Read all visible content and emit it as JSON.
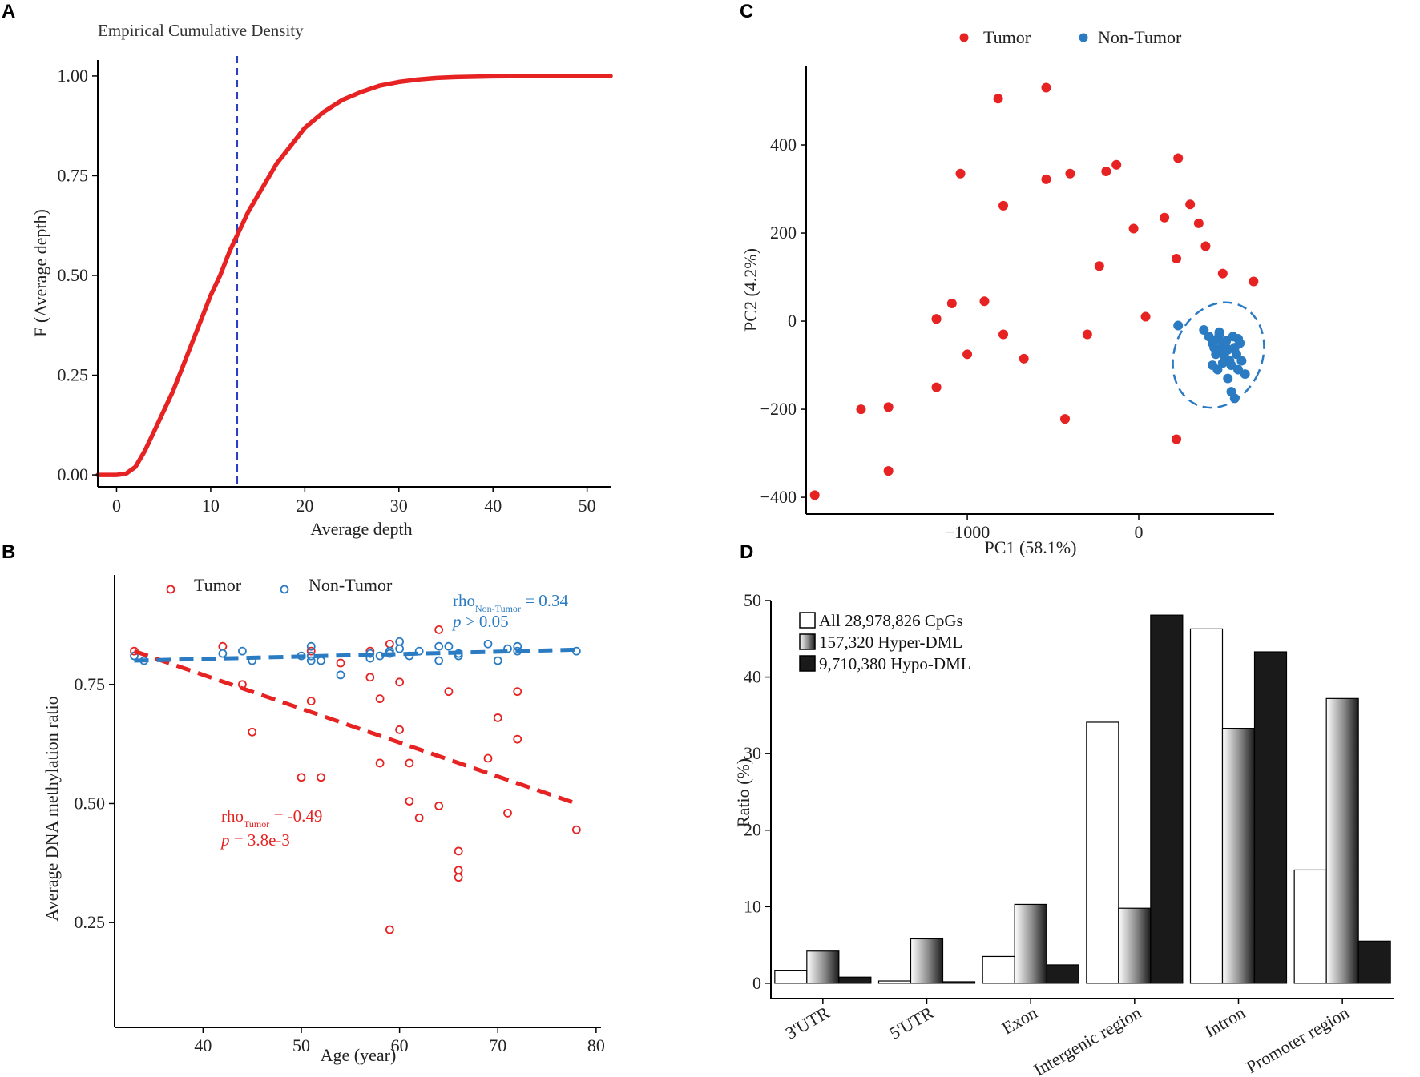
{
  "chart_data": [
    {
      "panel": "A",
      "type": "line",
      "title": "Empirical Cumulative Density",
      "xlabel": "Average depth",
      "ylabel": "F (Average depth)",
      "xlim": [
        -2,
        52.5
      ],
      "ylim": [
        -0.03,
        1.04
      ],
      "xticks": [
        "0",
        "10",
        "20",
        "30",
        "40",
        "50"
      ],
      "yticks": [
        "0.00",
        "0.25",
        "0.50",
        "0.75",
        "1.00"
      ],
      "cutoff_line_x": 12.8,
      "colors": {
        "curve": "#e62222",
        "cutoff": "#2b3fc4"
      },
      "x": [
        -2,
        0,
        1,
        2,
        3,
        4,
        5,
        6,
        7,
        8,
        9,
        10,
        11,
        12,
        13,
        14,
        15,
        16,
        17,
        18,
        19,
        20,
        22,
        24,
        26,
        28,
        30,
        32,
        34,
        36,
        38,
        40,
        42,
        45,
        48,
        52.5
      ],
      "y": [
        0.0,
        0.0,
        0.003,
        0.02,
        0.06,
        0.11,
        0.16,
        0.21,
        0.27,
        0.33,
        0.39,
        0.45,
        0.5,
        0.56,
        0.61,
        0.66,
        0.7,
        0.74,
        0.78,
        0.81,
        0.84,
        0.87,
        0.91,
        0.94,
        0.96,
        0.976,
        0.985,
        0.991,
        0.995,
        0.997,
        0.998,
        0.999,
        0.9995,
        1.0,
        1.0,
        1.0
      ]
    },
    {
      "panel": "B",
      "type": "scatter",
      "xlabel": "Age (year)",
      "ylabel": "Average DNA methylation ratio",
      "xlim": [
        31,
        80.5
      ],
      "ylim": [
        0.03,
        0.98
      ],
      "xticks": [
        "40",
        "50",
        "60",
        "70",
        "80"
      ],
      "yticks": [
        "0.25",
        "0.50",
        "0.75"
      ],
      "series": [
        {
          "name": "Tumor",
          "color": "#e62222",
          "x": [
            33,
            42,
            44,
            45,
            50,
            51,
            51,
            52,
            54,
            57,
            57,
            58,
            58,
            59,
            59,
            60,
            60,
            61,
            61,
            62,
            64,
            64,
            65,
            66,
            66,
            66,
            69,
            70,
            71,
            72,
            72,
            78
          ],
          "y": [
            0.82,
            0.83,
            0.75,
            0.65,
            0.555,
            0.715,
            0.82,
            0.555,
            0.795,
            0.765,
            0.82,
            0.72,
            0.585,
            0.235,
            0.835,
            0.655,
            0.755,
            0.585,
            0.505,
            0.47,
            0.865,
            0.495,
            0.735,
            0.4,
            0.36,
            0.345,
            0.595,
            0.68,
            0.48,
            0.735,
            0.635,
            0.445
          ],
          "trend": {
            "x": [
              33,
              78
            ],
            "y": [
              0.82,
              0.5
            ]
          }
        },
        {
          "name": "Non-Tumor",
          "color": "#2a7bc2",
          "x": [
            33,
            34,
            42,
            44,
            45,
            50,
            51,
            51,
            51,
            52,
            54,
            57,
            57,
            58,
            59,
            59,
            60,
            60,
            61,
            62,
            64,
            64,
            65,
            66,
            66,
            69,
            70,
            71,
            72,
            72,
            78
          ],
          "y": [
            0.81,
            0.8,
            0.815,
            0.82,
            0.8,
            0.81,
            0.83,
            0.8,
            0.81,
            0.8,
            0.77,
            0.815,
            0.805,
            0.81,
            0.815,
            0.82,
            0.84,
            0.825,
            0.81,
            0.82,
            0.8,
            0.83,
            0.83,
            0.815,
            0.81,
            0.835,
            0.8,
            0.825,
            0.83,
            0.82,
            0.82
          ],
          "trend": {
            "x": [
              33,
              78
            ],
            "y": [
              0.8,
              0.823
            ]
          }
        }
      ],
      "legend": [
        "Tumor",
        "Non-Tumor"
      ],
      "annotations": {
        "tumor_rho_base": "rho",
        "tumor_rho_sub": "Tumor",
        "tumor_rho_value": " = -0.49",
        "tumor_p_label": "p",
        "tumor_p_value": " =  3.8e-3",
        "nontumor_rho_base": "rho",
        "nontumor_rho_sub": "Non-Tumor",
        "nontumor_rho_value": " = 0.34",
        "nontumor_p_label": "p",
        "nontumor_p_value": " > 0.05"
      }
    },
    {
      "panel": "C",
      "type": "scatter",
      "xlabel": "PC1 (58.1%)",
      "ylabel": "PC2 (4.2%)",
      "xlim": [
        -1940,
        790
      ],
      "ylim": [
        -438,
        580
      ],
      "xticks": [
        "−1000",
        "0"
      ],
      "yticks": [
        "−400",
        "−200",
        "0",
        "200",
        "400"
      ],
      "legend": [
        "Tumor",
        "Non-Tumor"
      ],
      "series": [
        {
          "name": "Tumor",
          "color": "#e62222",
          "x": [
            -820,
            -540,
            -1040,
            -540,
            -1180,
            -790,
            -1090,
            -900,
            -1180,
            -790,
            -1000,
            -670,
            -1180,
            -1620,
            -1460,
            -1460,
            -1890,
            -430,
            -400,
            -300,
            -190,
            -130,
            -230,
            -30,
            40,
            150,
            230,
            220,
            300,
            350,
            390,
            490,
            670,
            220
          ],
          "y": [
            505,
            530,
            335,
            322,
            5,
            262,
            40,
            45,
            5,
            -30,
            -75,
            -85,
            -150,
            -200,
            -195,
            -340,
            -395,
            -222,
            335,
            -30,
            340,
            355,
            125,
            210,
            10,
            235,
            370,
            142,
            265,
            222,
            170,
            108,
            90,
            -268
          ]
        },
        {
          "name": "Non-Tumor",
          "color": "#2a7bc2",
          "x": [
            230,
            380,
            410,
            430,
            440,
            460,
            470,
            480,
            490,
            500,
            510,
            520,
            530,
            540,
            550,
            560,
            570,
            580,
            590,
            600,
            620,
            430,
            460,
            500,
            540,
            560,
            470,
            520,
            580,
            510,
            490,
            450
          ],
          "y": [
            -10,
            -20,
            -35,
            -50,
            -60,
            -40,
            -30,
            -70,
            -55,
            -80,
            -45,
            -65,
            -90,
            -100,
            -35,
            -60,
            -75,
            -110,
            -50,
            -90,
            -120,
            -100,
            -110,
            -85,
            -160,
            -175,
            -25,
            -130,
            -40,
            -60,
            -95,
            -75
          ],
          "ellipse": {
            "cx": 465,
            "cy": -77,
            "rx": 255,
            "ry": 123,
            "angle_deg": -24
          }
        }
      ]
    },
    {
      "panel": "D",
      "type": "bar",
      "ylabel": "Ratio (%)",
      "xlabel": "",
      "ylim": [
        -2,
        50
      ],
      "yticks": [
        "0",
        "10",
        "20",
        "30",
        "40",
        "50"
      ],
      "categories": [
        "3'UTR",
        "5'UTR",
        "Exon",
        "Intergenic region",
        "Intron",
        "Promoter region"
      ],
      "series": [
        {
          "name": "All 28,978,826 CpGs",
          "style": "white",
          "values": [
            1.7,
            0.3,
            3.5,
            34.1,
            46.3,
            14.8
          ]
        },
        {
          "name": "157,320 Hyper-DML",
          "style": "gradient",
          "values": [
            4.2,
            5.8,
            10.3,
            9.8,
            33.3,
            37.2
          ]
        },
        {
          "name": "9,710,380 Hypo-DML",
          "style": "black",
          "values": [
            0.8,
            0.2,
            2.4,
            48.1,
            43.3,
            5.5
          ]
        }
      ]
    }
  ],
  "panel_letters": {
    "a": "A",
    "b": "B",
    "c": "C",
    "d": "D"
  }
}
